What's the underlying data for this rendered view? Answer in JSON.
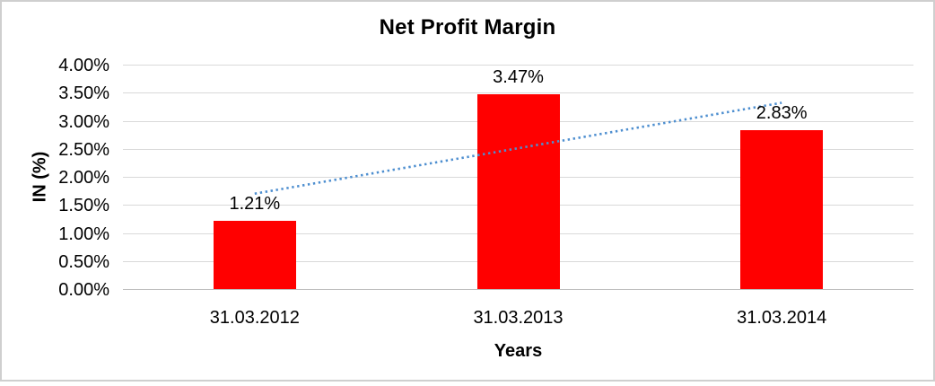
{
  "chart_data": {
    "type": "bar",
    "title": "Net Profit Margin",
    "xlabel": "Years",
    "ylabel": "IN (%)",
    "categories": [
      "31.03.2012",
      "31.03.2013",
      "31.03.2014"
    ],
    "values": [
      1.21,
      3.47,
      2.83
    ],
    "data_labels": [
      "1.21%",
      "3.47%",
      "2.83%"
    ],
    "ylim": [
      0,
      4
    ],
    "ytick_labels_top_to_bottom": [
      "4.00%",
      "3.50%",
      "3.00%",
      "2.50%",
      "2.00%",
      "1.50%",
      "1.00%",
      "0.50%",
      "0.00%"
    ],
    "grid": true,
    "legend": "none",
    "bar_color": "#ff0000",
    "gridline_color": "#d9d9d9",
    "axis_line_color": "#bfbfbf",
    "text_color": "#000000",
    "trendline": {
      "type": "linear",
      "style": "dotted",
      "color": "#4e8fd0",
      "start_value": 1.7,
      "end_value": 3.32
    }
  }
}
